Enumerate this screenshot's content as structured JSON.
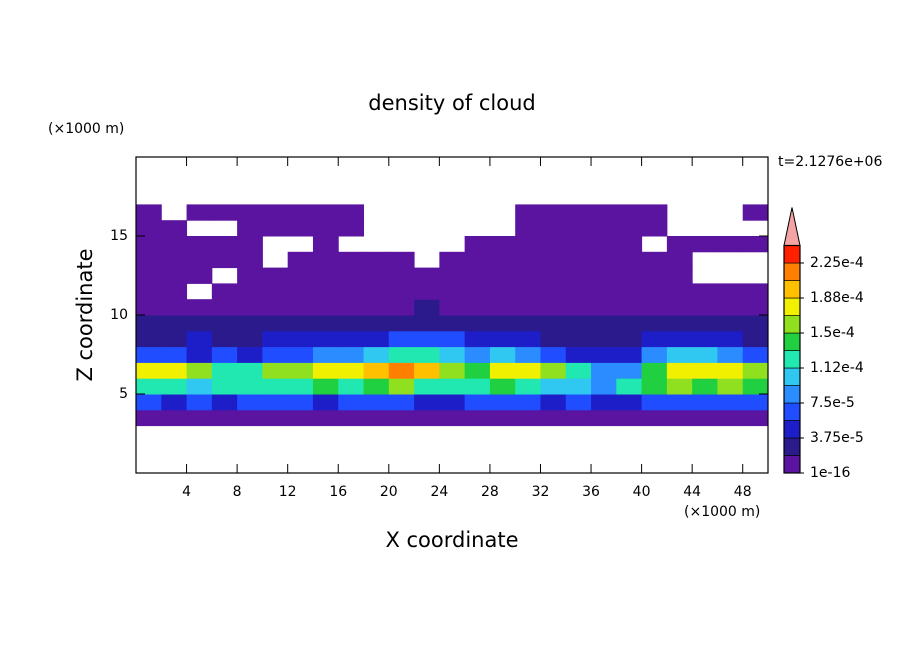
{
  "chart_data": {
    "type": "contour",
    "title": "density of cloud",
    "x_label": "X coordinate",
    "y_label": "Z coordinate",
    "x_unit": "(×1000 m)",
    "y_unit": "(×1000 m)",
    "annotation": "t=2.1276e+06",
    "x": [
      1,
      3,
      5,
      7,
      9,
      11,
      13,
      15,
      17,
      19,
      21,
      23,
      25,
      27,
      29,
      31,
      33,
      35,
      37,
      39,
      41,
      43,
      45,
      47,
      49
    ],
    "y": [
      3.5,
      4.5,
      5.5,
      6.5,
      7.5,
      8.5,
      9.5,
      10.5,
      11.5,
      12.5,
      13.5,
      14.5,
      15.5,
      16.5
    ],
    "z": [
      [
        1e-16,
        1e-16,
        1e-16,
        1e-16,
        1e-16,
        1e-16,
        1e-16,
        1e-16,
        1e-16,
        1e-16,
        1e-16,
        1e-16,
        1e-16,
        1e-16,
        1e-16,
        1e-16,
        1e-16,
        1e-16,
        1e-16,
        1e-16,
        1e-16,
        1e-16,
        1e-16,
        1e-16,
        1e-16
      ],
      [
        6e-05,
        5e-05,
        7e-05,
        5e-05,
        6e-05,
        7e-05,
        6e-05,
        5e-05,
        6e-05,
        7e-05,
        6e-05,
        5e-05,
        4e-05,
        6e-05,
        7e-05,
        6e-05,
        5e-05,
        6e-05,
        5e-05,
        4e-05,
        6e-05,
        7e-05,
        6e-05,
        7e-05,
        6e-05
      ],
      [
        0.00013,
        0.00012,
        0.00011,
        0.00012,
        0.00013,
        0.00012,
        0.00013,
        0.00014,
        0.00013,
        0.00014,
        0.00015,
        0.00013,
        0.00012,
        0.00013,
        0.00014,
        0.00013,
        0.00011,
        0.0001,
        9e-05,
        0.00012,
        0.00014,
        0.00015,
        0.00014,
        0.00015,
        0.00014
      ],
      [
        0.00017,
        0.00018,
        0.00016,
        0.00013,
        0.00012,
        0.00015,
        0.00016,
        0.00017,
        0.00017,
        0.00019,
        0.00021,
        0.0002,
        0.00016,
        0.00014,
        0.00017,
        0.00018,
        0.00016,
        0.00012,
        9e-05,
        8e-05,
        0.00014,
        0.00017,
        0.00018,
        0.00017,
        0.00016
      ],
      [
        7e-05,
        6e-05,
        5e-05,
        6e-05,
        5e-05,
        6e-05,
        7e-05,
        8e-05,
        9e-05,
        0.00011,
        0.00012,
        0.00013,
        0.00011,
        9e-05,
        0.0001,
        9e-05,
        7e-05,
        5e-05,
        4e-05,
        5e-05,
        8e-05,
        0.0001,
        0.00011,
        9e-05,
        7e-05
      ],
      [
        3e-05,
        3e-05,
        4e-05,
        3e-05,
        3e-05,
        4e-05,
        4e-05,
        4e-05,
        5e-05,
        5e-05,
        6e-05,
        7e-05,
        6e-05,
        5e-05,
        5e-05,
        4e-05,
        3e-05,
        3e-05,
        3e-05,
        3e-05,
        4e-05,
        5e-05,
        5e-05,
        4e-05,
        3e-05
      ],
      [
        2e-05,
        2e-05,
        2.5e-05,
        2e-05,
        2e-05,
        2.5e-05,
        2e-05,
        2e-05,
        2.5e-05,
        2.5e-05,
        3e-05,
        3e-05,
        3e-05,
        2.5e-05,
        2e-05,
        2e-05,
        2e-05,
        2e-05,
        2e-05,
        2.5e-05,
        2e-05,
        2e-05,
        2.5e-05,
        2e-05,
        2e-05
      ],
      [
        1e-16,
        1e-05,
        1e-05,
        1e-16,
        1e-05,
        1e-05,
        1e-05,
        1e-05,
        1e-05,
        1e-05,
        1e-05,
        2e-05,
        1e-05,
        1e-05,
        1e-05,
        1e-05,
        1e-16,
        1e-16,
        1e-05,
        1e-05,
        1e-05,
        1e-05,
        1e-05,
        1e-16,
        1e-16
      ],
      [
        1e-16,
        1e-16,
        null,
        1e-16,
        1e-05,
        1e-05,
        1e-05,
        1e-05,
        1e-05,
        1e-05,
        1e-05,
        1e-16,
        1e-16,
        1e-16,
        1e-16,
        1e-16,
        1e-16,
        1e-16,
        1e-05,
        1e-05,
        1e-05,
        1e-16,
        1e-16,
        1e-16,
        1e-16
      ],
      [
        1e-16,
        1e-16,
        1e-16,
        null,
        1e-16,
        1e-16,
        1e-16,
        1e-16,
        1e-16,
        1e-16,
        1e-16,
        1e-16,
        1e-16,
        1e-16,
        1e-16,
        1e-16,
        1e-16,
        1e-16,
        1e-16,
        1e-16,
        1e-16,
        1e-16,
        null,
        null,
        null
      ],
      [
        1e-16,
        1e-16,
        1e-16,
        1e-16,
        1e-16,
        null,
        1e-16,
        1e-16,
        1e-16,
        1e-16,
        1e-16,
        null,
        1e-16,
        1e-16,
        1e-16,
        1e-16,
        1e-16,
        1e-16,
        1e-16,
        1e-16,
        1e-16,
        1e-16,
        null,
        null,
        null
      ],
      [
        1e-16,
        1e-16,
        1e-16,
        1e-16,
        1e-16,
        null,
        null,
        1e-16,
        null,
        null,
        null,
        null,
        null,
        1e-16,
        1e-16,
        1e-16,
        1e-16,
        1e-16,
        1e-16,
        1e-16,
        null,
        1e-16,
        1e-16,
        1e-16,
        1e-16
      ],
      [
        1e-16,
        1e-16,
        null,
        null,
        1e-16,
        1e-16,
        1e-16,
        1e-16,
        1e-16,
        null,
        null,
        null,
        null,
        null,
        null,
        1e-16,
        1e-16,
        1e-16,
        1e-16,
        1e-16,
        1e-16,
        null,
        null,
        null,
        null
      ],
      [
        1e-16,
        null,
        1e-16,
        1e-16,
        1e-16,
        1e-16,
        1e-16,
        1e-16,
        1e-16,
        null,
        null,
        null,
        null,
        null,
        null,
        1e-16,
        1e-16,
        1e-16,
        1e-16,
        1e-16,
        1e-16,
        null,
        null,
        null,
        1e-16
      ]
    ],
    "xlim": [
      0,
      50
    ],
    "ylim": [
      0,
      20
    ],
    "xticks": [
      4,
      8,
      12,
      16,
      20,
      24,
      28,
      32,
      36,
      40,
      44,
      48
    ],
    "yticks": [
      5,
      10,
      15
    ],
    "colorbar": {
      "levels": [
        1e-16,
        1.875e-05,
        3.75e-05,
        5.625e-05,
        7.5e-05,
        9.375e-05,
        0.0001125,
        0.00013125,
        0.00015,
        0.00016875,
        0.0001875,
        0.00020625,
        0.000225,
        0.00024375
      ],
      "colors": [
        "#5a14a0",
        "#2a1a8c",
        "#1e1ec8",
        "#1f4dff",
        "#2a8cff",
        "#30c8f0",
        "#20e8b0",
        "#20d040",
        "#90e020",
        "#f0f000",
        "#ffc000",
        "#ff8000",
        "#ff2000"
      ],
      "extend_color": "#f4a4a4",
      "ticks": [
        {
          "value": 1e-16,
          "label": "1e-16"
        },
        {
          "value": 3.75e-05,
          "label": "3.75e-5"
        },
        {
          "value": 7.5e-05,
          "label": "7.5e-5"
        },
        {
          "value": 0.0001125,
          "label": "1.12e-4"
        },
        {
          "value": 0.00015,
          "label": "1.5e-4"
        },
        {
          "value": 0.0001875,
          "label": "1.88e-4"
        },
        {
          "value": 0.000225,
          "label": "2.25e-4"
        }
      ]
    }
  }
}
